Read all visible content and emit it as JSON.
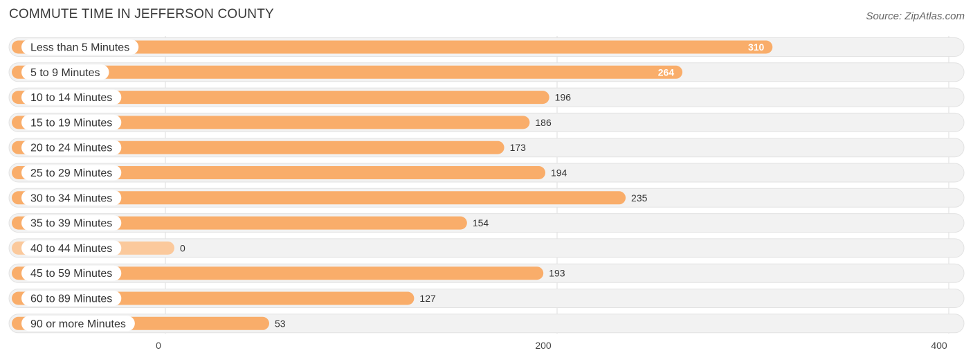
{
  "title": "COMMUTE TIME IN JEFFERSON COUNTY",
  "source": "Source: ZipAtlas.com",
  "chart_data": {
    "type": "bar",
    "orientation": "horizontal",
    "title": "COMMUTE TIME IN JEFFERSON COUNTY",
    "categories": [
      "Less than 5 Minutes",
      "5 to 9 Minutes",
      "10 to 14 Minutes",
      "15 to 19 Minutes",
      "20 to 24 Minutes",
      "25 to 29 Minutes",
      "30 to 34 Minutes",
      "35 to 39 Minutes",
      "40 to 44 Minutes",
      "45 to 59 Minutes",
      "60 to 89 Minutes",
      "90 or more Minutes"
    ],
    "values": [
      310,
      264,
      196,
      186,
      173,
      194,
      235,
      154,
      0,
      193,
      127,
      53
    ],
    "xlim": [
      0,
      400
    ],
    "xticks": [
      0,
      200,
      400
    ],
    "grid": true,
    "colors": {
      "bar": "#f9ad6a",
      "bar_light": "#fbc99c",
      "track": "#f2f2f2",
      "track_border": "#e2e2e2",
      "label_bg": "#ffffff",
      "text": "#333333",
      "value_inside": "#ffffff",
      "grid": "#dddddd"
    }
  }
}
